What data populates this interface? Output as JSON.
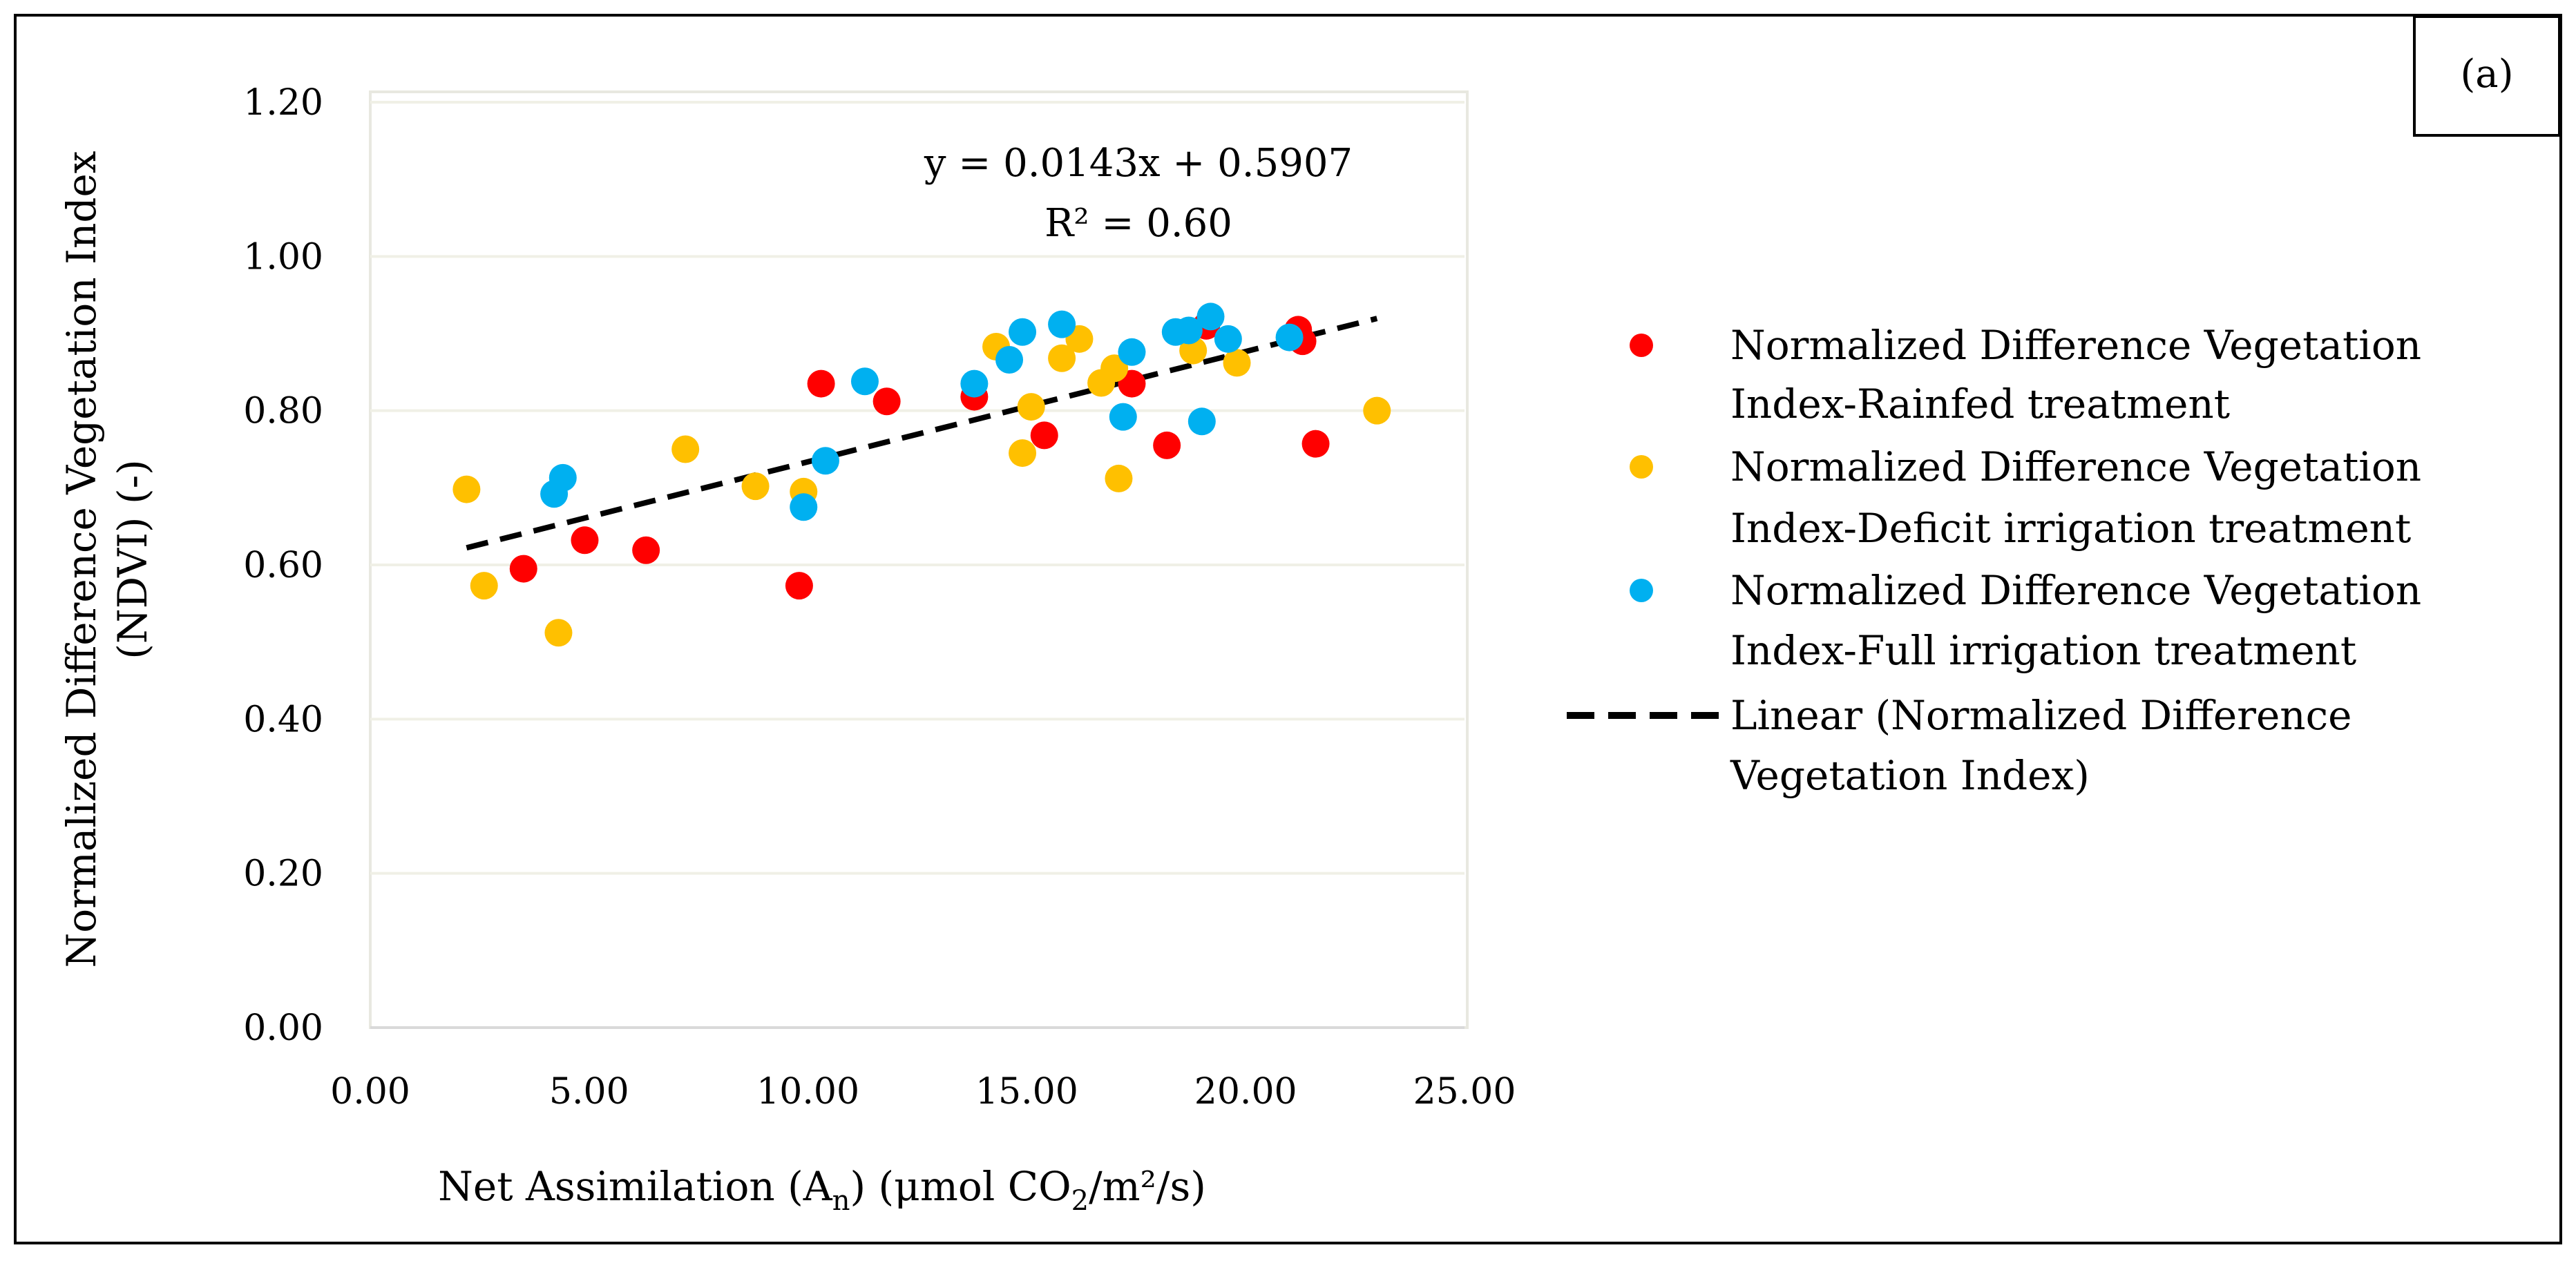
{
  "chart_data": {
    "type": "scatter",
    "panel_label": "(a)",
    "title": "",
    "xlabel": {
      "prefix": "Net Assimilation (A",
      "sub1": "n",
      "middle": ") (μmol CO",
      "sub2": "2",
      "suffix": "/m²/s)"
    },
    "ylabel_lines": [
      "Normalized Difference Vegetation Index",
      "(NDVI) (-)"
    ],
    "xlim": [
      0,
      25
    ],
    "ylim": [
      0,
      1.2
    ],
    "x_ticks": [
      0,
      5,
      10,
      15,
      20,
      25
    ],
    "x_tick_labels": [
      "0.00",
      "5.00",
      "10.00",
      "15.00",
      "20.00",
      "25.00"
    ],
    "y_ticks": [
      0,
      0.2,
      0.4,
      0.6,
      0.8,
      1.0,
      1.2
    ],
    "y_tick_labels": [
      "0.00",
      "0.20",
      "0.40",
      "0.60",
      "0.80",
      "1.00",
      "1.20"
    ],
    "grid": "horizontal",
    "legend_position": "right",
    "series": [
      {
        "name": "Normalized Difference Vegetation Index-Rainfed treatment",
        "legend_lines": [
          "Normalized Difference Vegetation",
          "Index-Rainfed treatment"
        ],
        "color": "#FF0000",
        "points": [
          [
            3.5,
            0.595
          ],
          [
            4.9,
            0.632
          ],
          [
            6.3,
            0.619
          ],
          [
            9.8,
            0.573
          ],
          [
            10.3,
            0.835
          ],
          [
            11.8,
            0.812
          ],
          [
            13.8,
            0.818
          ],
          [
            15.4,
            0.768
          ],
          [
            17.4,
            0.835
          ],
          [
            18.2,
            0.755
          ],
          [
            21.2,
            0.905
          ],
          [
            21.3,
            0.89
          ],
          [
            21.6,
            0.757
          ],
          [
            19.1,
            0.91
          ]
        ]
      },
      {
        "name": "Normalized Difference Vegetation Index-Deficit irrigation treatment",
        "legend_lines": [
          "Normalized Difference Vegetation",
          "Index-Deficit irrigation treatment"
        ],
        "color": "#FFC000",
        "points": [
          [
            2.2,
            0.698
          ],
          [
            2.6,
            0.573
          ],
          [
            4.3,
            0.512
          ],
          [
            7.2,
            0.75
          ],
          [
            8.8,
            0.702
          ],
          [
            9.9,
            0.695
          ],
          [
            14.3,
            0.883
          ],
          [
            14.9,
            0.745
          ],
          [
            15.1,
            0.805
          ],
          [
            15.8,
            0.868
          ],
          [
            16.2,
            0.893
          ],
          [
            16.7,
            0.836
          ],
          [
            17.0,
            0.855
          ],
          [
            17.1,
            0.712
          ],
          [
            18.8,
            0.878
          ],
          [
            19.8,
            0.862
          ],
          [
            23.0,
            0.8
          ]
        ]
      },
      {
        "name": "Normalized Difference Vegetation Index-Full irrigation treatment",
        "legend_lines": [
          "Normalized Difference Vegetation",
          "Index-Full irrigation treatment"
        ],
        "color": "#00B0F0",
        "points": [
          [
            4.2,
            0.692
          ],
          [
            4.4,
            0.713
          ],
          [
            9.9,
            0.675
          ],
          [
            10.4,
            0.735
          ],
          [
            11.3,
            0.838
          ],
          [
            13.8,
            0.835
          ],
          [
            14.6,
            0.866
          ],
          [
            14.9,
            0.902
          ],
          [
            15.8,
            0.912
          ],
          [
            17.2,
            0.792
          ],
          [
            17.4,
            0.876
          ],
          [
            18.4,
            0.902
          ],
          [
            18.7,
            0.904
          ],
          [
            19.0,
            0.786
          ],
          [
            19.2,
            0.922
          ],
          [
            19.6,
            0.893
          ],
          [
            21.0,
            0.895
          ]
        ]
      }
    ],
    "trendline": {
      "name": "Linear (Normalized Difference Vegetation Index)",
      "legend_lines": [
        "Linear (Normalized Difference",
        "Vegetation Index)"
      ],
      "slope": 0.0143,
      "intercept": 0.5907,
      "x_range": [
        2.2,
        23.0
      ],
      "color": "#000000",
      "equation": "y = 0.0143x + 0.5907",
      "r2": "R² = 0.60"
    }
  }
}
